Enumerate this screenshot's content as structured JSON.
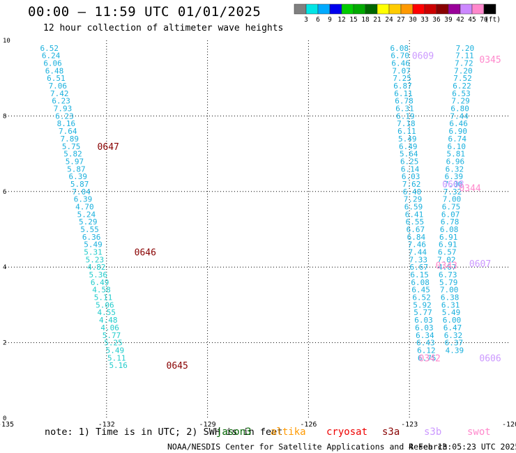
{
  "header": {
    "title": "00:00 – 11:59 UTC 01/01/2025",
    "subtitle": "12 hour collection of altimeter wave heights"
  },
  "colorbar": {
    "labels": [
      "3",
      "6",
      "9",
      "12",
      "15",
      "18",
      "21",
      "24",
      "27",
      "30",
      "33",
      "36",
      "39",
      "42",
      "45",
      "70",
      "(ft)"
    ],
    "colors": [
      "#808080",
      "#00e5e5",
      "#00aaff",
      "#0000ee",
      "#00cc00",
      "#00aa00",
      "#006600",
      "#ffff00",
      "#ffcc00",
      "#ff9900",
      "#ff0000",
      "#cc0000",
      "#880000",
      "#990099",
      "#cc88ff",
      "#ff88cc",
      "#000000"
    ]
  },
  "footer": {
    "note": "note: 1) Time is in UTC; 2) SWH is in feet",
    "satellites": [
      {
        "name": "jason3",
        "color": "#006400"
      },
      {
        "name": "altika",
        "color": "#ff9900"
      },
      {
        "name": "cryosat",
        "color": "#ee0000"
      },
      {
        "name": "s3a",
        "color": "#880000"
      },
      {
        "name": "s3b",
        "color": "#cc99ff"
      },
      {
        "name": "swot",
        "color": "#ff88cc"
      }
    ],
    "credit": "NOAA/NESDIS Center for Satellite Applications and Research",
    "timestamp": "4 Feb 13:05:23 UTC 2025"
  },
  "chart_data": {
    "type": "scatter",
    "title": "00:00 – 11:59 UTC 01/01/2025",
    "xlabel": "",
    "ylabel": "",
    "xlim": [
      -135,
      -120
    ],
    "ylim": [
      0,
      10
    ],
    "x_ticks": [
      -135,
      -132,
      -129,
      -126,
      -123,
      -120
    ],
    "x_tick_labels": [
      "-135",
      "-132",
      "-129",
      "-126",
      "-123",
      "-120"
    ],
    "y_ticks": [
      0,
      2,
      4,
      6,
      8,
      10
    ],
    "grid": "dotted",
    "series": [
      {
        "satellite": "track-1",
        "color": "#1ab0dd",
        "points": [
          {
            "x": -133.7,
            "y": 9.8,
            "v": "6.52"
          },
          {
            "x": -133.65,
            "y": 9.6,
            "v": "6.24"
          },
          {
            "x": -133.6,
            "y": 9.4,
            "v": "6.06"
          },
          {
            "x": -133.55,
            "y": 9.2,
            "v": "6.48"
          },
          {
            "x": -133.5,
            "y": 9.0,
            "v": "6.51"
          },
          {
            "x": -133.45,
            "y": 8.8,
            "v": "7.06"
          },
          {
            "x": -133.4,
            "y": 8.6,
            "v": "7.42"
          },
          {
            "x": -133.35,
            "y": 8.4,
            "v": "6.23"
          },
          {
            "x": -133.3,
            "y": 8.2,
            "v": "7.93"
          },
          {
            "x": -133.25,
            "y": 8.0,
            "v": "6.23"
          },
          {
            "x": -133.2,
            "y": 7.8,
            "v": "8.16"
          },
          {
            "x": -133.15,
            "y": 7.6,
            "v": "7.64"
          },
          {
            "x": -133.1,
            "y": 7.4,
            "v": "7.89"
          },
          {
            "x": -133.05,
            "y": 7.2,
            "v": "5.75"
          },
          {
            "x": -133.0,
            "y": 7.0,
            "v": "5.82"
          },
          {
            "x": -132.95,
            "y": 6.8,
            "v": "5.97"
          },
          {
            "x": -132.9,
            "y": 6.6,
            "v": "5.87"
          },
          {
            "x": -132.85,
            "y": 6.4,
            "v": "6.39"
          },
          {
            "x": -132.8,
            "y": 6.2,
            "v": "5.87"
          },
          {
            "x": -132.75,
            "y": 6.0,
            "v": "7.04"
          },
          {
            "x": -132.7,
            "y": 5.8,
            "v": "6.39"
          },
          {
            "x": -132.65,
            "y": 5.6,
            "v": "4.70"
          },
          {
            "x": -132.6,
            "y": 5.4,
            "v": "5.24"
          },
          {
            "x": -132.55,
            "y": 5.2,
            "v": "5.29"
          },
          {
            "x": -132.5,
            "y": 5.0,
            "v": "5.55"
          },
          {
            "x": -132.45,
            "y": 4.8,
            "v": "6.36"
          },
          {
            "x": -132.4,
            "y": 4.6,
            "v": "5.49"
          }
        ]
      },
      {
        "satellite": "track-2",
        "color": "#22cccc",
        "points": [
          {
            "x": -132.4,
            "y": 4.4,
            "v": "5.31"
          },
          {
            "x": -132.35,
            "y": 4.2,
            "v": "5.23"
          },
          {
            "x": -132.3,
            "y": 4.0,
            "v": "4.82"
          },
          {
            "x": -132.25,
            "y": 3.8,
            "v": "5.36"
          },
          {
            "x": -132.2,
            "y": 3.6,
            "v": "6.49"
          },
          {
            "x": -132.15,
            "y": 3.4,
            "v": "4.58"
          },
          {
            "x": -132.1,
            "y": 3.2,
            "v": "5.11"
          },
          {
            "x": -132.05,
            "y": 3.0,
            "v": "5.06"
          },
          {
            "x": -132.0,
            "y": 2.8,
            "v": "4.55"
          },
          {
            "x": -131.95,
            "y": 2.6,
            "v": "4.48"
          },
          {
            "x": -131.9,
            "y": 2.4,
            "v": "4.06"
          },
          {
            "x": -131.85,
            "y": 2.2,
            "v": "5.77"
          },
          {
            "x": -131.8,
            "y": 2.0,
            "v": "5.25"
          },
          {
            "x": -131.75,
            "y": 1.8,
            "v": "5.49"
          },
          {
            "x": -131.7,
            "y": 1.6,
            "v": "5.11"
          },
          {
            "x": -131.65,
            "y": 1.4,
            "v": "5.16"
          }
        ]
      },
      {
        "satellite": "track-3",
        "color": "#1ab0dd",
        "points": [
          {
            "x": -123.3,
            "y": 9.8,
            "v": "6.08"
          },
          {
            "x": -123.28,
            "y": 9.6,
            "v": "6.70"
          },
          {
            "x": -123.26,
            "y": 9.4,
            "v": "6.46"
          },
          {
            "x": -123.24,
            "y": 9.2,
            "v": "7.07"
          },
          {
            "x": -123.22,
            "y": 9.0,
            "v": "7.25"
          },
          {
            "x": -123.2,
            "y": 8.8,
            "v": "6.87"
          },
          {
            "x": -123.18,
            "y": 8.6,
            "v": "6.11"
          },
          {
            "x": -123.16,
            "y": 8.4,
            "v": "6.78"
          },
          {
            "x": -123.14,
            "y": 8.2,
            "v": "6.31"
          },
          {
            "x": -123.12,
            "y": 8.0,
            "v": "6.19"
          },
          {
            "x": -123.1,
            "y": 7.8,
            "v": "7.18"
          },
          {
            "x": -123.08,
            "y": 7.6,
            "v": "6.11"
          },
          {
            "x": -123.06,
            "y": 7.4,
            "v": "5.49"
          },
          {
            "x": -123.04,
            "y": 7.2,
            "v": "6.49"
          },
          {
            "x": -123.02,
            "y": 7.0,
            "v": "5.64"
          },
          {
            "x": -123.0,
            "y": 6.8,
            "v": "6.25"
          },
          {
            "x": -122.98,
            "y": 6.6,
            "v": "6.14"
          },
          {
            "x": -122.96,
            "y": 6.4,
            "v": "6.03"
          },
          {
            "x": -122.94,
            "y": 6.2,
            "v": "7.62"
          },
          {
            "x": -122.92,
            "y": 6.0,
            "v": "6.40"
          },
          {
            "x": -122.9,
            "y": 5.8,
            "v": "7.29"
          },
          {
            "x": -122.88,
            "y": 5.6,
            "v": "6.59"
          },
          {
            "x": -122.86,
            "y": 5.4,
            "v": "6.41"
          },
          {
            "x": -122.84,
            "y": 5.2,
            "v": "6.55"
          },
          {
            "x": -122.82,
            "y": 5.0,
            "v": "6.67"
          },
          {
            "x": -122.8,
            "y": 4.8,
            "v": "6.84"
          },
          {
            "x": -122.78,
            "y": 4.6,
            "v": "7.46"
          },
          {
            "x": -122.76,
            "y": 4.4,
            "v": "7.44"
          },
          {
            "x": -122.74,
            "y": 4.2,
            "v": "7.33"
          },
          {
            "x": -122.72,
            "y": 4.0,
            "v": "6.67"
          },
          {
            "x": -122.7,
            "y": 3.8,
            "v": "6.15"
          },
          {
            "x": -122.68,
            "y": 3.6,
            "v": "6.08"
          },
          {
            "x": -122.66,
            "y": 3.4,
            "v": "6.45"
          },
          {
            "x": -122.64,
            "y": 3.2,
            "v": "6.52"
          },
          {
            "x": -122.62,
            "y": 3.0,
            "v": "5.92"
          },
          {
            "x": -122.6,
            "y": 2.8,
            "v": "5.77"
          },
          {
            "x": -122.58,
            "y": 2.6,
            "v": "6.03"
          },
          {
            "x": -122.56,
            "y": 2.4,
            "v": "6.03"
          },
          {
            "x": -122.54,
            "y": 2.2,
            "v": "6.34"
          },
          {
            "x": -122.52,
            "y": 2.0,
            "v": "6.43"
          },
          {
            "x": -122.5,
            "y": 1.8,
            "v": "6.12"
          },
          {
            "x": -122.48,
            "y": 1.6,
            "v": "6.75"
          }
        ]
      },
      {
        "satellite": "track-4",
        "color": "#1ab0dd",
        "points": [
          {
            "x": -121.35,
            "y": 9.8,
            "v": "7.20"
          },
          {
            "x": -121.36,
            "y": 9.6,
            "v": "7.11"
          },
          {
            "x": -121.38,
            "y": 9.4,
            "v": "7.72"
          },
          {
            "x": -121.4,
            "y": 9.2,
            "v": "7.20"
          },
          {
            "x": -121.42,
            "y": 9.0,
            "v": "7.52"
          },
          {
            "x": -121.44,
            "y": 8.8,
            "v": "6.22"
          },
          {
            "x": -121.46,
            "y": 8.6,
            "v": "6.53"
          },
          {
            "x": -121.48,
            "y": 8.4,
            "v": "7.29"
          },
          {
            "x": -121.5,
            "y": 8.2,
            "v": "6.80"
          },
          {
            "x": -121.52,
            "y": 8.0,
            "v": "7.44"
          },
          {
            "x": -121.54,
            "y": 7.8,
            "v": "6.46"
          },
          {
            "x": -121.56,
            "y": 7.6,
            "v": "6.90"
          },
          {
            "x": -121.58,
            "y": 7.4,
            "v": "6.74"
          },
          {
            "x": -121.6,
            "y": 7.2,
            "v": "6.10"
          },
          {
            "x": -121.62,
            "y": 7.0,
            "v": "5.81"
          },
          {
            "x": -121.64,
            "y": 6.8,
            "v": "6.96"
          },
          {
            "x": -121.66,
            "y": 6.6,
            "v": "6.32"
          },
          {
            "x": -121.68,
            "y": 6.4,
            "v": "6.39"
          },
          {
            "x": -121.7,
            "y": 6.2,
            "v": "7.00"
          },
          {
            "x": -121.72,
            "y": 6.0,
            "v": "7.32"
          },
          {
            "x": -121.74,
            "y": 5.8,
            "v": "7.00"
          },
          {
            "x": -121.76,
            "y": 5.6,
            "v": "6.75"
          },
          {
            "x": -121.78,
            "y": 5.4,
            "v": "6.07"
          },
          {
            "x": -121.8,
            "y": 5.2,
            "v": "6.78"
          },
          {
            "x": -121.82,
            "y": 5.0,
            "v": "6.08"
          },
          {
            "x": -121.84,
            "y": 4.8,
            "v": "6.91"
          },
          {
            "x": -121.86,
            "y": 4.6,
            "v": "6.91"
          },
          {
            "x": -121.88,
            "y": 4.4,
            "v": "6.57"
          },
          {
            "x": -121.9,
            "y": 4.2,
            "v": "7.02"
          },
          {
            "x": -121.88,
            "y": 4.0,
            "v": "4.67"
          },
          {
            "x": -121.86,
            "y": 3.8,
            "v": "6.73"
          },
          {
            "x": -121.84,
            "y": 3.6,
            "v": "5.79"
          },
          {
            "x": -121.82,
            "y": 3.4,
            "v": "7.00"
          },
          {
            "x": -121.8,
            "y": 3.2,
            "v": "6.38"
          },
          {
            "x": -121.78,
            "y": 3.0,
            "v": "6.31"
          },
          {
            "x": -121.76,
            "y": 2.8,
            "v": "5.49"
          },
          {
            "x": -121.74,
            "y": 2.6,
            "v": "6.00"
          },
          {
            "x": -121.72,
            "y": 2.4,
            "v": "6.47"
          },
          {
            "x": -121.7,
            "y": 2.2,
            "v": "6.32"
          },
          {
            "x": -121.68,
            "y": 2.0,
            "v": "6.37"
          },
          {
            "x": -121.66,
            "y": 1.8,
            "v": "4.39"
          }
        ]
      }
    ],
    "pass_labels": [
      {
        "text": "0647",
        "x": -131.95,
        "y": 7.2,
        "color": "#880000"
      },
      {
        "text": "0646",
        "x": -130.85,
        "y": 4.4,
        "color": "#880000"
      },
      {
        "text": "0645",
        "x": -129.9,
        "y": 1.4,
        "color": "#880000"
      },
      {
        "text": "0609",
        "x": -122.6,
        "y": 9.6,
        "color": "#cc99ff"
      },
      {
        "text": "0345",
        "x": -120.6,
        "y": 9.5,
        "color": "#ff88cc"
      },
      {
        "text": "0608",
        "x": -121.7,
        "y": 6.2,
        "color": "#cc99ff"
      },
      {
        "text": "0344",
        "x": -121.2,
        "y": 6.1,
        "color": "#ff88cc"
      },
      {
        "text": "0343",
        "x": -121.9,
        "y": 4.05,
        "color": "#ff88cc"
      },
      {
        "text": "0607",
        "x": -120.9,
        "y": 4.1,
        "color": "#cc99ff"
      },
      {
        "text": "0342",
        "x": -122.4,
        "y": 1.6,
        "color": "#ff88cc"
      },
      {
        "text": "0606",
        "x": -120.6,
        "y": 1.6,
        "color": "#cc99ff"
      }
    ]
  }
}
